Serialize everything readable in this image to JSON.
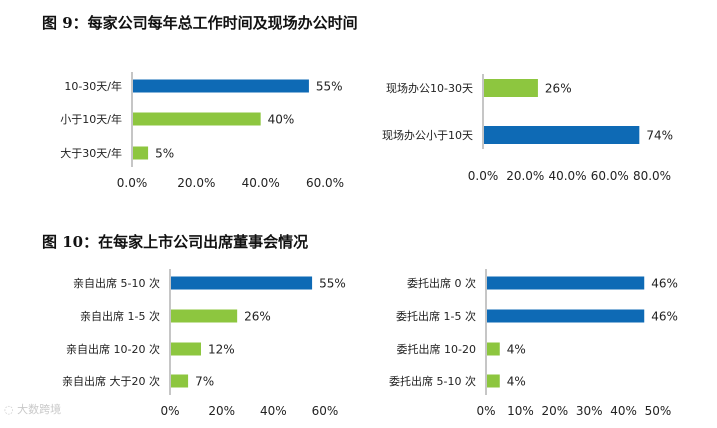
{
  "figure9": {
    "label": "图 ",
    "number": "9",
    "text": "：每家公司每年总工作时间及现场办公时间"
  },
  "figure10": {
    "label": "图 ",
    "number": "10",
    "text": "：在每家上市公司出席董事会情况"
  },
  "watermark": "大数跨境",
  "colors": {
    "blue": "#0E6AB5",
    "green": "#8DC63F",
    "axis": "#8c8c8c"
  },
  "chart_data": [
    {
      "id": "c9a",
      "type": "bar",
      "orientation": "horizontal",
      "categories": [
        "10-30天/年",
        "小于10天/年",
        "大于30天/年"
      ],
      "values": [
        55,
        40,
        5
      ],
      "value_labels": [
        "55%",
        "40%",
        "5%"
      ],
      "bar_colors": [
        "blue",
        "green",
        "green"
      ],
      "xlim": [
        0,
        60
      ],
      "xticks": [
        "0.0%",
        "20.0%",
        "40.0%",
        "60.0%"
      ],
      "grid": false
    },
    {
      "id": "c9b",
      "type": "bar",
      "orientation": "horizontal",
      "categories": [
        "现场办公10-30天",
        "现场办公小于10天"
      ],
      "values": [
        26,
        74
      ],
      "value_labels": [
        "26%",
        "74%"
      ],
      "bar_colors": [
        "green",
        "blue"
      ],
      "xlim": [
        0,
        80
      ],
      "xticks": [
        "0.0%",
        "20.0%",
        "40.0%",
        "60.0%",
        "80.0%"
      ],
      "grid": false
    },
    {
      "id": "c10a",
      "type": "bar",
      "orientation": "horizontal",
      "categories": [
        "亲自出席 5-10 次",
        "亲自出席 1-5 次",
        "亲自出席 10-20 次",
        "亲自出席 大于20 次"
      ],
      "values": [
        55,
        26,
        12,
        7
      ],
      "value_labels": [
        "55%",
        "26%",
        "12%",
        "7%"
      ],
      "bar_colors": [
        "blue",
        "green",
        "green",
        "green"
      ],
      "xlim": [
        0,
        60
      ],
      "xticks": [
        "0%",
        "20%",
        "40%",
        "60%"
      ],
      "grid": false
    },
    {
      "id": "c10b",
      "type": "bar",
      "orientation": "horizontal",
      "categories": [
        "委托出席 0 次",
        "委托出席 1-5 次",
        "委托出席 10-20",
        "委托出席 5-10 次"
      ],
      "values": [
        46,
        46,
        4,
        4
      ],
      "value_labels": [
        "46%",
        "46%",
        "4%",
        "4%"
      ],
      "bar_colors": [
        "blue",
        "blue",
        "green",
        "green"
      ],
      "xlim": [
        0,
        50
      ],
      "xticks": [
        "0%",
        "10%",
        "20%",
        "30%",
        "40%",
        "50%"
      ],
      "grid": false
    }
  ]
}
